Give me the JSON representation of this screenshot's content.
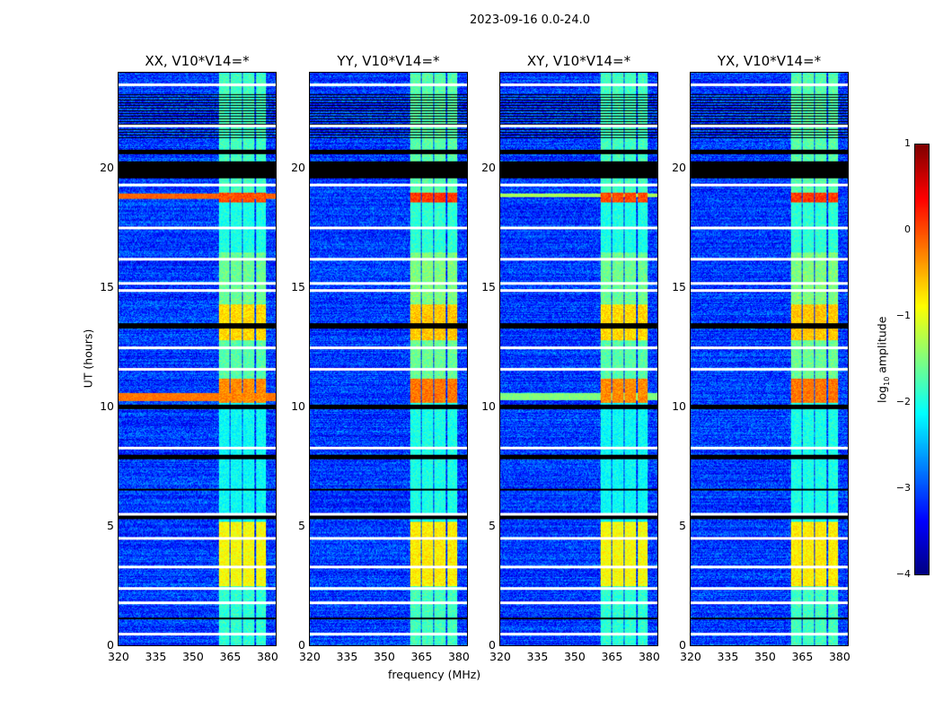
{
  "chart_data": {
    "type": "heatmap",
    "title": "2023-09-16 0.0-24.0",
    "xlabel": "frequency (MHz)",
    "ylabel": "UT (hours)",
    "xlim": [
      320,
      384
    ],
    "ylim": [
      0,
      24
    ],
    "xticks": [
      320,
      335,
      350,
      365,
      380
    ],
    "yticks": [
      0,
      5,
      10,
      15,
      20
    ],
    "panels": [
      {
        "title": "XX, V10*V14=*",
        "broadband_rfi": [
          [
            10.25,
            10.6,
            -0.2
          ],
          [
            18.75,
            18.95,
            -0.1
          ]
        ]
      },
      {
        "title": "YY, V10*V14=*",
        "broadband_rfi": []
      },
      {
        "title": "XY, V10*V14=*",
        "broadband_rfi": [
          [
            10.3,
            10.6,
            -1.5
          ],
          [
            18.8,
            18.95,
            -1.3
          ]
        ]
      },
      {
        "title": "YX, V10*V14=*",
        "broadband_rfi": []
      }
    ],
    "rfi_channels_mhz": [
      [
        360.5,
        365
      ],
      [
        365.5,
        370
      ],
      [
        370.6,
        375
      ],
      [
        375.7,
        380
      ]
    ],
    "rfi_time_levels": [
      [
        0,
        2.5,
        -1.8
      ],
      [
        2.5,
        5.2,
        -0.8
      ],
      [
        5.2,
        10.2,
        -2.0
      ],
      [
        10.2,
        11.2,
        -0.2
      ],
      [
        11.2,
        12.8,
        -1.6
      ],
      [
        12.8,
        14.3,
        -0.6
      ],
      [
        14.3,
        16.5,
        -1.5
      ],
      [
        16.5,
        18.6,
        -1.9
      ],
      [
        18.6,
        19.0,
        0.1
      ],
      [
        19.0,
        24,
        -1.7
      ]
    ],
    "background_level": -3.1,
    "flagged_white_hours": [
      0.5,
      1.8,
      2.4,
      3.3,
      4.5,
      5.5,
      8.3,
      11.6,
      12.5,
      14.9,
      15.2,
      16.2,
      17.5,
      19.3,
      21.8,
      23.5
    ],
    "flagged_black_ranges": [
      [
        1.1,
        1.2
      ],
      [
        5.3,
        5.45
      ],
      [
        6.5,
        6.6
      ],
      [
        7.8,
        8.0
      ],
      [
        9.9,
        10.1
      ],
      [
        13.3,
        13.5
      ],
      [
        19.6,
        20.3
      ],
      [
        20.6,
        20.8
      ],
      [
        21.2,
        23.2
      ]
    ],
    "colorbar": {
      "label": "log10 amplitude",
      "range": [
        -4,
        1
      ],
      "ticks": [
        1,
        0,
        -1,
        -2,
        -3,
        -4
      ],
      "tick_labels": [
        "1",
        "0",
        "−1",
        "−2",
        "−3",
        "−4"
      ],
      "colormap": "jet"
    }
  }
}
